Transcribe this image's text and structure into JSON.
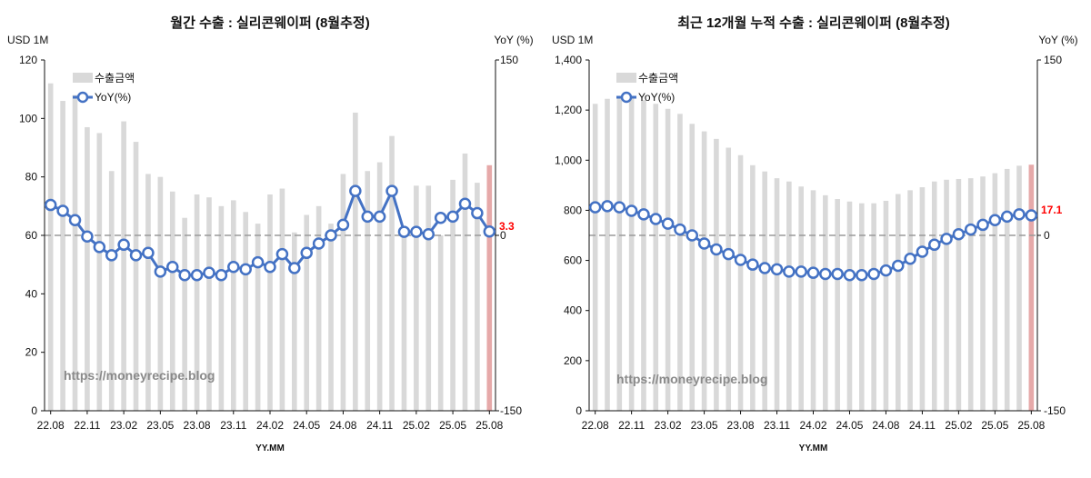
{
  "chart_data": [
    {
      "type": "bar+line",
      "title": "월간 수출 : 실리콘웨이퍼 (8월추정)",
      "y_left_label": "USD 1M",
      "y_right_label": "YoY (%)",
      "xlabel": "YY.MM",
      "ylim_left": [
        0,
        120
      ],
      "left_ticks": [
        0,
        20,
        40,
        60,
        80,
        100,
        120
      ],
      "ylim_right": [
        -150,
        150
      ],
      "right_ticks": [
        -150,
        0,
        150
      ],
      "x_tick_labels": [
        "22.08",
        "22.11",
        "23.02",
        "23.05",
        "23.08",
        "23.11",
        "24.02",
        "24.05",
        "24.08",
        "24.11",
        "25.02",
        "25.05",
        "25.08"
      ],
      "legend": [
        "수출금액",
        "YoY(%)"
      ],
      "watermark": "https://moneyrecipe.blog",
      "last_label": "3.3",
      "categories": [
        "22.08",
        "22.09",
        "22.10",
        "22.11",
        "22.12",
        "23.01",
        "23.02",
        "23.03",
        "23.04",
        "23.05",
        "23.06",
        "23.07",
        "23.08",
        "23.09",
        "23.10",
        "23.11",
        "23.12",
        "24.01",
        "24.02",
        "24.03",
        "24.04",
        "24.05",
        "24.06",
        "24.07",
        "24.08",
        "24.09",
        "24.10",
        "24.11",
        "24.12",
        "25.01",
        "25.02",
        "25.03",
        "25.04",
        "25.05",
        "25.06",
        "25.07",
        "25.08"
      ],
      "series": [
        {
          "name": "수출금액",
          "kind": "bar",
          "axis": "left",
          "values": [
            112,
            106,
            108,
            97,
            95,
            82,
            99,
            92,
            81,
            80,
            75,
            66,
            74,
            73,
            70,
            72,
            68,
            64,
            74,
            76,
            61,
            67,
            70,
            64,
            81,
            102,
            82,
            85,
            94,
            63,
            77,
            77,
            60,
            79,
            88,
            78,
            84
          ]
        },
        {
          "name": "YoY(%)",
          "kind": "line",
          "axis": "right",
          "values": [
            26,
            21,
            13,
            -1,
            -10,
            -17,
            -8,
            -17,
            -15,
            -31,
            -27,
            -34,
            -34,
            -32,
            -34,
            -27,
            -29,
            -23,
            -27,
            -16,
            -28,
            -15,
            -7,
            0,
            9,
            38,
            16,
            16,
            38,
            3,
            3,
            1,
            15,
            16,
            27,
            19,
            3.3
          ]
        }
      ]
    },
    {
      "type": "bar+line",
      "title": "최근 12개월 누적 수출 : 실리콘웨이퍼 (8월추정)",
      "y_left_label": "USD 1M",
      "y_right_label": "YoY (%)",
      "xlabel": "YY.MM",
      "ylim_left": [
        0,
        1400
      ],
      "left_ticks": [
        0,
        200,
        400,
        600,
        800,
        1000,
        1200,
        1400
      ],
      "left_tick_labels": [
        "0",
        "200",
        "400",
        "600",
        "800",
        "1,000",
        "1,200",
        "1,400"
      ],
      "ylim_right": [
        -150,
        150
      ],
      "right_ticks": [
        -150,
        0,
        150
      ],
      "x_tick_labels": [
        "22.08",
        "22.11",
        "23.02",
        "23.05",
        "23.08",
        "23.11",
        "24.02",
        "24.05",
        "24.08",
        "24.11",
        "25.02",
        "25.05",
        "25.08"
      ],
      "legend": [
        "수출금액",
        "YoY(%)"
      ],
      "watermark": "https://moneyrecipe.blog",
      "last_label": "17.1",
      "categories": [
        "22.08",
        "22.09",
        "22.10",
        "22.11",
        "22.12",
        "23.01",
        "23.02",
        "23.03",
        "23.04",
        "23.05",
        "23.06",
        "23.07",
        "23.08",
        "23.09",
        "23.10",
        "23.11",
        "23.12",
        "24.01",
        "24.02",
        "24.03",
        "24.04",
        "24.05",
        "24.06",
        "24.07",
        "24.08",
        "24.09",
        "24.10",
        "24.11",
        "24.12",
        "25.01",
        "25.02",
        "25.03",
        "25.04",
        "25.05",
        "25.06",
        "25.07",
        "25.08"
      ],
      "series": [
        {
          "name": "수출금액",
          "kind": "bar",
          "axis": "left",
          "values": [
            1225,
            1245,
            1255,
            1250,
            1240,
            1225,
            1205,
            1185,
            1145,
            1115,
            1085,
            1050,
            1020,
            980,
            955,
            928,
            915,
            895,
            880,
            860,
            845,
            835,
            828,
            828,
            838,
            865,
            880,
            892,
            915,
            922,
            925,
            928,
            935,
            948,
            965,
            978,
            982
          ]
        },
        {
          "name": "YoY(%)",
          "kind": "line",
          "axis": "right",
          "values": [
            24,
            25,
            24,
            21,
            18,
            14,
            10,
            5,
            0,
            -7,
            -12,
            -16,
            -21,
            -25,
            -28,
            -29,
            -31,
            -31,
            -32,
            -33,
            -33,
            -34,
            -34,
            -33,
            -30,
            -26,
            -20,
            -14,
            -8,
            -3,
            1,
            5,
            9,
            13,
            16,
            18,
            17.1
          ]
        }
      ]
    }
  ]
}
